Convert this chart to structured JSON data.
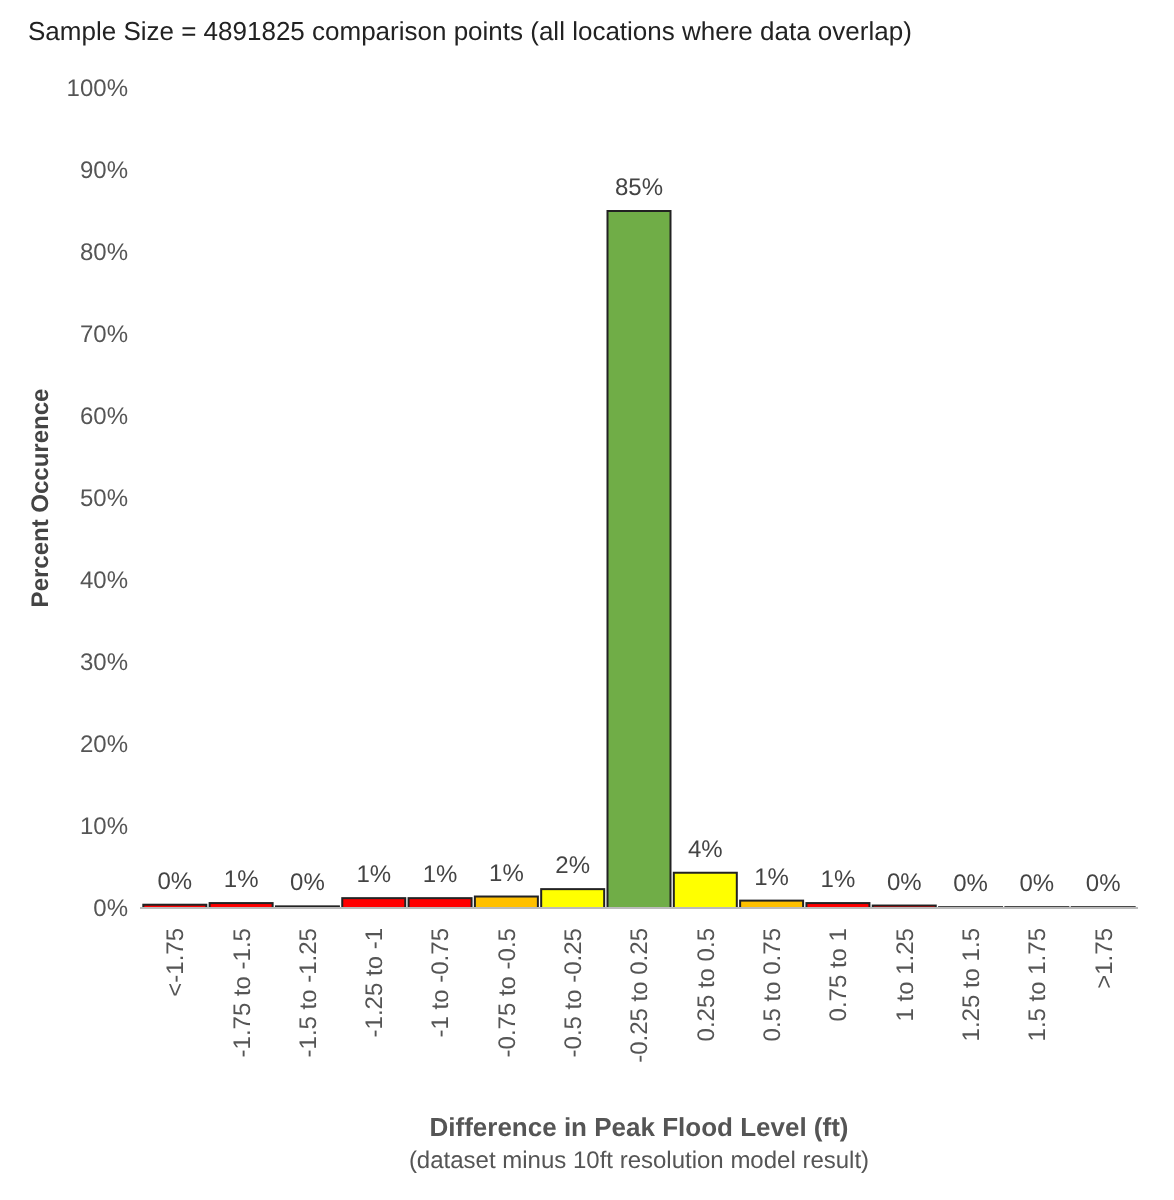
{
  "chart_data": {
    "type": "bar",
    "title": "Sample Size = 4891825 comparison points (all locations where data overlap)",
    "xlabel": "Difference in Peak Flood Level (ft)",
    "annotations": [
      "(dataset minus 10ft resolution model result)"
    ],
    "ylabel": "Percent Occurence",
    "categories": [
      "<-1.75",
      "-1.75 to -1.5",
      "-1.5 to -1.25",
      "-1.25 to -1",
      "-1 to -0.75",
      "-0.75 to -0.5",
      "-0.5 to -0.25",
      "-0.25 to 0.25",
      "0.25 to 0.5",
      "0.5 to 0.75",
      "0.75 to 1",
      "1 to 1.25",
      "1.25 to 1.5",
      "1.5 to 1.75",
      ">1.75"
    ],
    "values": [
      0.4,
      0.6,
      0.2,
      1.2,
      1.2,
      1.4,
      2.3,
      85,
      4.3,
      0.9,
      0.6,
      0.3,
      0.1,
      0.1,
      0.1
    ],
    "value_labels": [
      "0%",
      "1%",
      "0%",
      "1%",
      "1%",
      "1%",
      "2%",
      "85%",
      "4%",
      "1%",
      "1%",
      "0%",
      "0%",
      "0%",
      "0%"
    ],
    "colors": [
      "#ff0000",
      "#ff0000",
      "#ff0000",
      "#ff0000",
      "#ff0000",
      "#ffc000",
      "#ffff00",
      "#70ad47",
      "#ffff00",
      "#ffc000",
      "#ff0000",
      "#ff0000",
      "#ff0000",
      "#ff0000",
      "#ff0000"
    ],
    "ylim": [
      0,
      100
    ],
    "yticks": [
      {
        "value": 0,
        "label": "0%"
      },
      {
        "value": 10,
        "label": "10%"
      },
      {
        "value": 20,
        "label": "20%"
      },
      {
        "value": 30,
        "label": "30%"
      },
      {
        "value": 40,
        "label": "40%"
      },
      {
        "value": 50,
        "label": "50%"
      },
      {
        "value": 60,
        "label": "60%"
      },
      {
        "value": 70,
        "label": "70%"
      },
      {
        "value": 80,
        "label": "80%"
      },
      {
        "value": 90,
        "label": "90%"
      },
      {
        "value": 100,
        "label": "100%"
      }
    ]
  }
}
